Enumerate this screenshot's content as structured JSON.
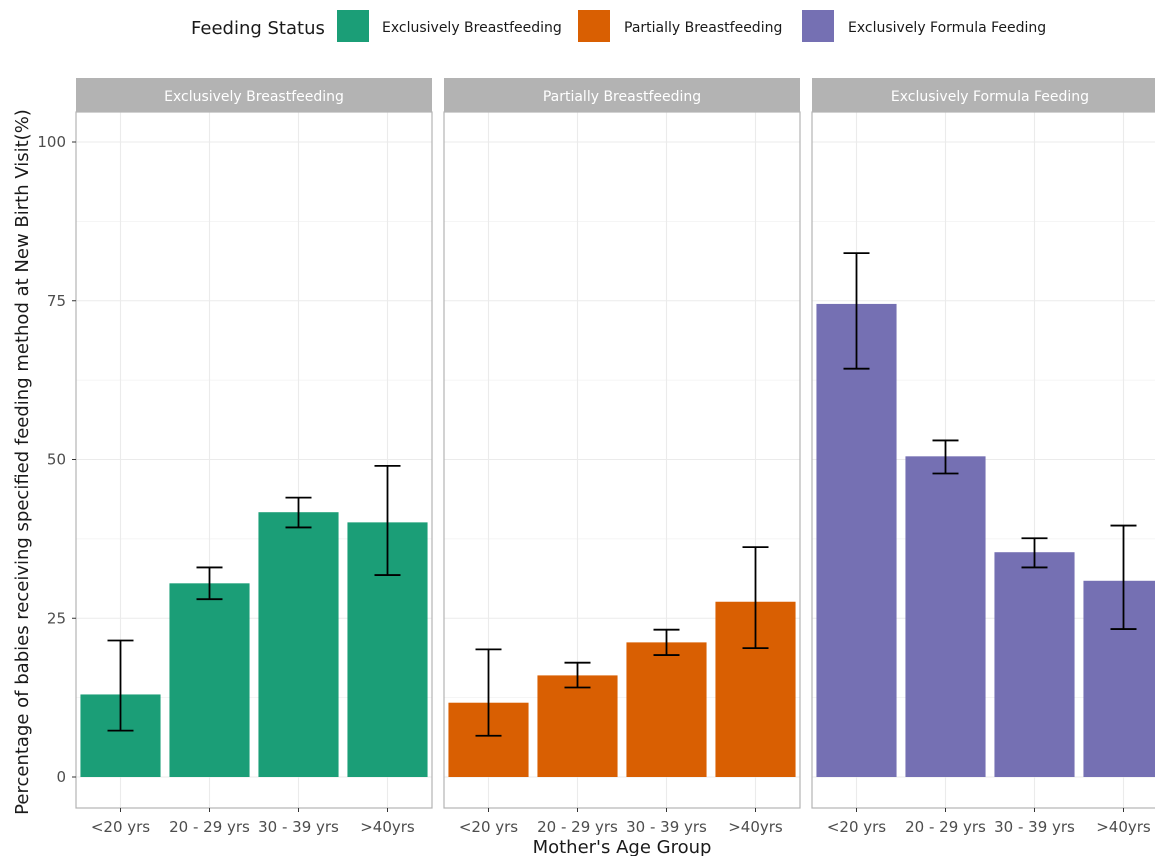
{
  "chart_data": {
    "type": "bar",
    "legend": {
      "title": "Feeding Status",
      "position": "top",
      "entries": [
        {
          "label": "Exclusively Breastfeeding",
          "color": "#1b9e77"
        },
        {
          "label": "Partially Breastfeeding",
          "color": "#d95f02"
        },
        {
          "label": "Exclusively Formula Feeding",
          "color": "#7570b3"
        }
      ]
    },
    "xlabel": "Mother's Age Group",
    "ylabel": "Percentage of babies receiving specified feeding method at New Birth Visit(%)",
    "ylim": [
      0,
      105
    ],
    "yticks": [
      0,
      25,
      50,
      75,
      100
    ],
    "grid": true,
    "categories": [
      "<20 yrs",
      "20 - 29 yrs",
      "30 - 39 yrs",
      ">40yrs"
    ],
    "panels": [
      {
        "title": "Exclusively Breastfeeding",
        "color": "#1b9e77",
        "values": [
          13.0,
          30.5,
          41.7,
          40.1
        ],
        "error_low": [
          7.3,
          28.0,
          39.3,
          31.8
        ],
        "error_high": [
          21.5,
          33.0,
          44.0,
          49.0
        ]
      },
      {
        "title": "Partially Breastfeeding",
        "color": "#d95f02",
        "values": [
          11.7,
          16.0,
          21.2,
          27.6
        ],
        "error_low": [
          6.5,
          14.1,
          19.2,
          20.3
        ],
        "error_high": [
          20.1,
          18.0,
          23.2,
          36.2
        ]
      },
      {
        "title": "Exclusively Formula Feeding",
        "color": "#7570b3",
        "values": [
          74.5,
          50.5,
          35.4,
          30.9
        ],
        "error_low": [
          64.3,
          47.8,
          33.0,
          23.3
        ],
        "error_high": [
          82.5,
          53.0,
          37.6,
          39.6
        ]
      }
    ]
  }
}
